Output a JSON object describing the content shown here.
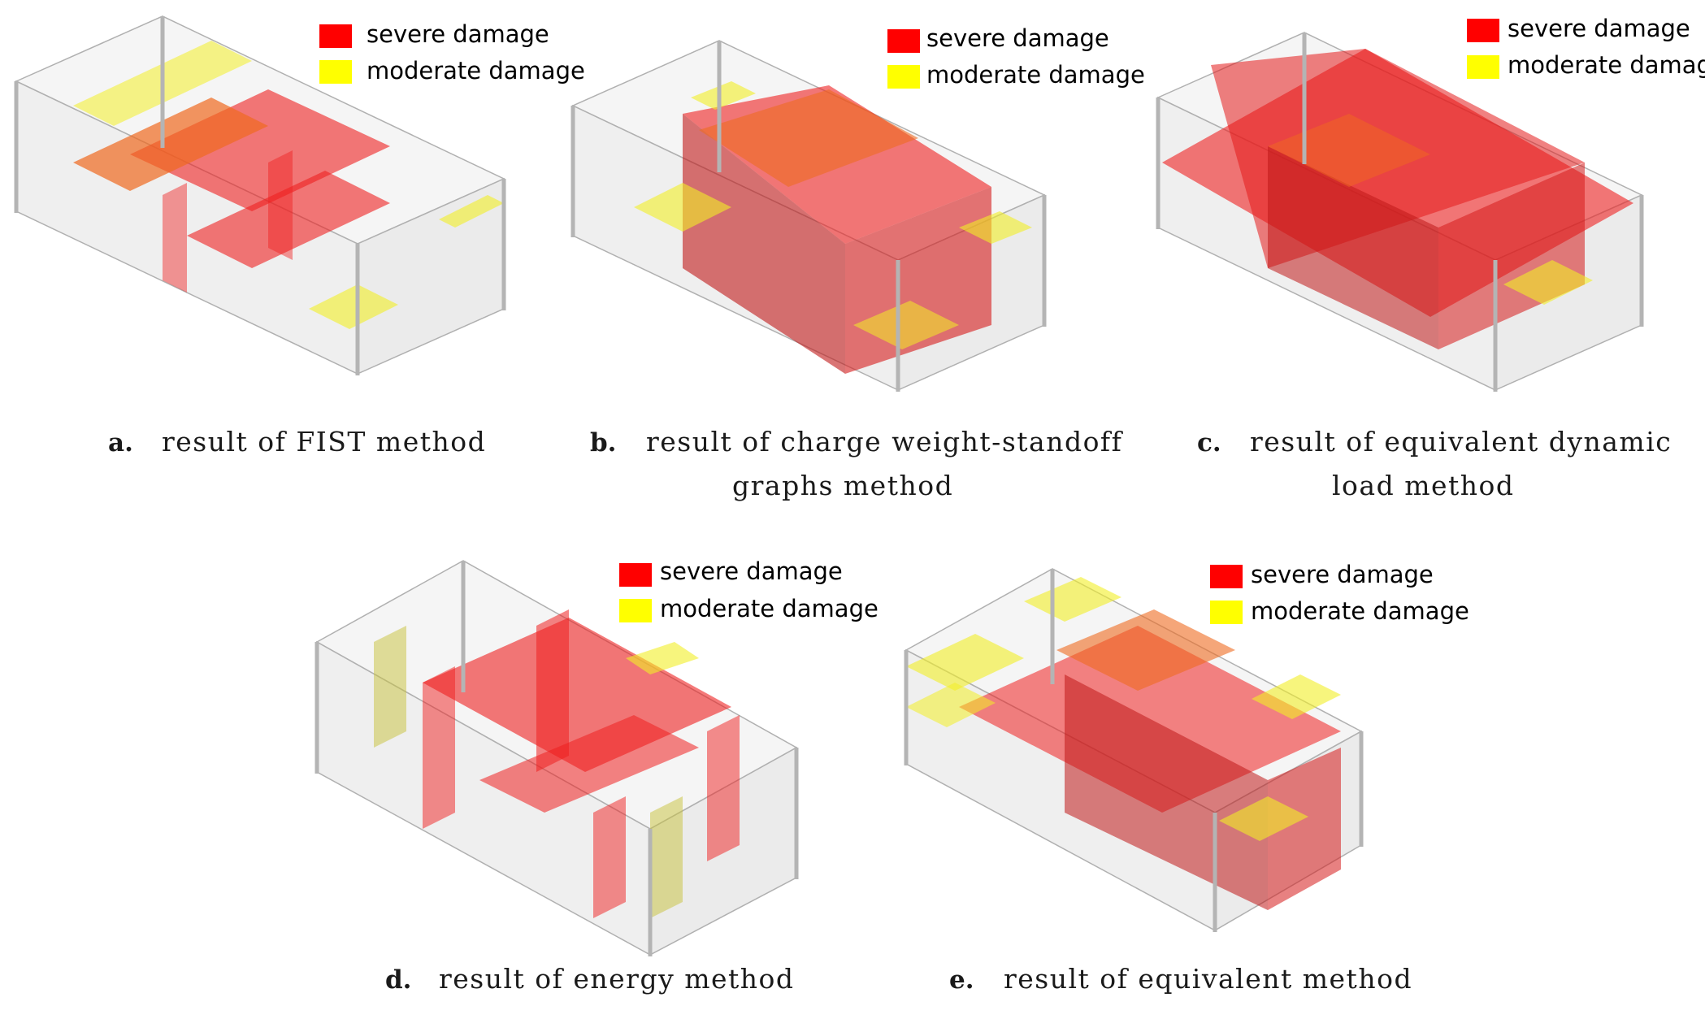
{
  "legend": {
    "severe_label": "severe damage",
    "moderate_label": "moderate damage",
    "severe_color": "#ff0000",
    "moderate_color": "#ffff00"
  },
  "colors": {
    "severe_fill": "#ef1f1f",
    "moderate_fill": "#f2ee26",
    "frame_fill": "#e6e6e6",
    "frame_stroke": "#a8a8a8",
    "column": "#b4b4b4"
  },
  "panels": [
    {
      "id": "a",
      "letter": "a.",
      "caption": [
        "result of FIST method"
      ]
    },
    {
      "id": "b",
      "letter": "b.",
      "caption": [
        "result of charge weight-standoff",
        "graphs method"
      ]
    },
    {
      "id": "c",
      "letter": "c.",
      "caption": [
        "result of equivalent dynamic",
        "load method"
      ]
    },
    {
      "id": "d",
      "letter": "d.",
      "caption": [
        "result of energy method"
      ]
    },
    {
      "id": "e",
      "letter": "e.",
      "caption": [
        "result of equivalent method"
      ]
    }
  ]
}
